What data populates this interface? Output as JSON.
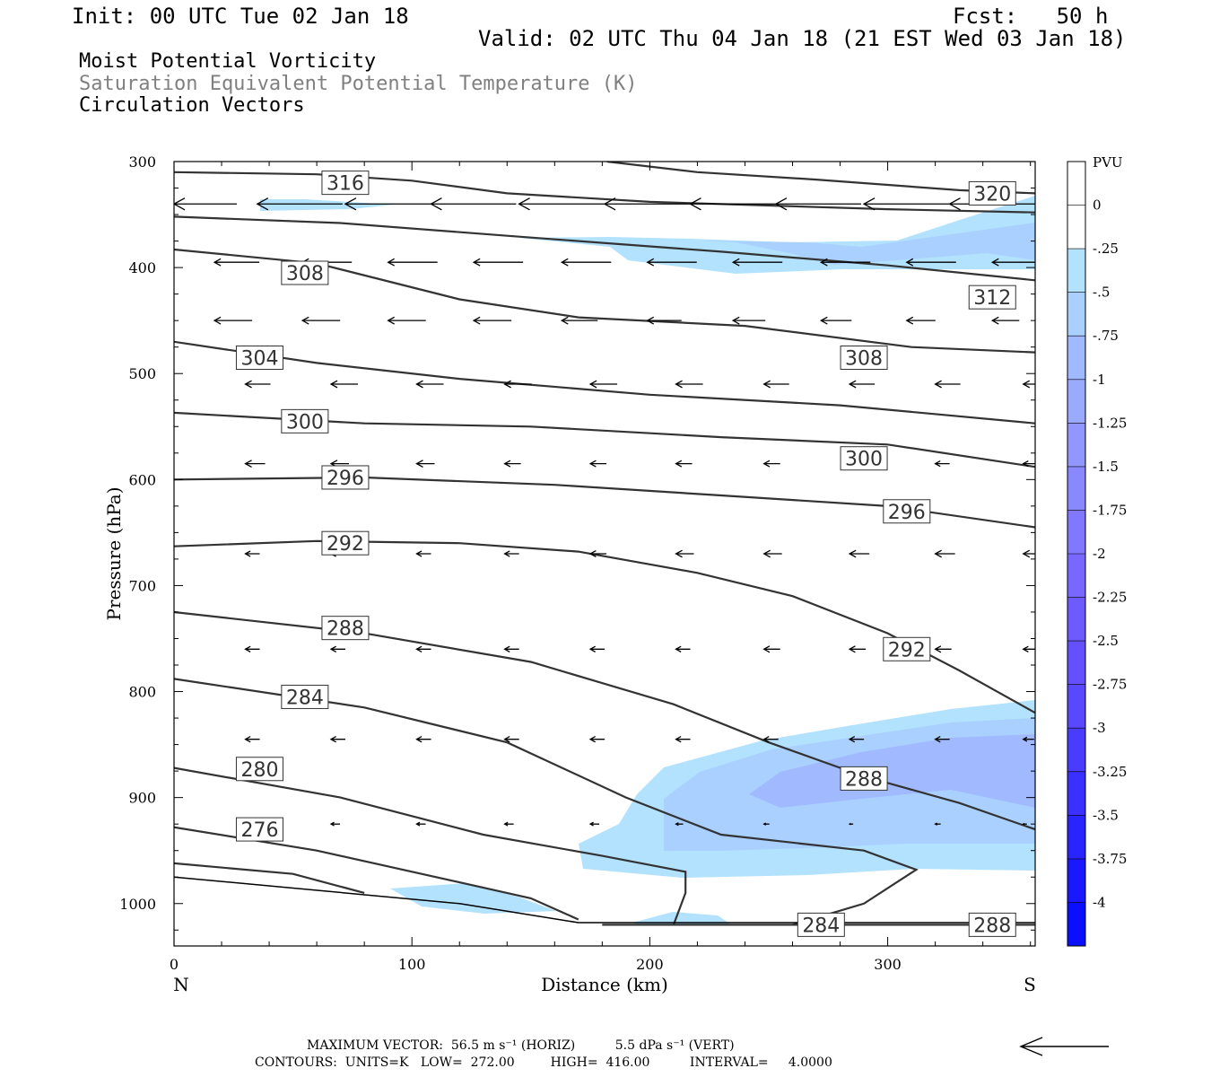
{
  "header": {
    "init": "Init: 00 UTC Tue 02 Jan 18",
    "fcst": "Fcst:   50 h",
    "valid": "Valid: 02 UTC Thu 04 Jan 18 (21 EST Wed 03 Jan 18)",
    "fields": [
      "Moist Potential Vorticity",
      "Saturation Equivalent Potential Temperature (K)",
      "Circulation Vectors"
    ]
  },
  "footer": {
    "line1": "MAXIMUM VECTOR:  56.5 m s⁻¹ (HORIZ)          5.5 dPa s⁻¹ (VERT)",
    "line2": "CONTOURS:  UNITS=K   LOW=  272.00         HIGH=  416.00          INTERVAL=     4.0000"
  },
  "colors": {
    "contour": "#333333",
    "pv_025": "#b3e2ff",
    "pv_05": "#aad0ff",
    "pv_075": "#a0b9ff"
  },
  "chart_data": {
    "type": "cross-section",
    "xlabel": "Distance (km)",
    "ylabel": "Pressure (hPa)",
    "xlim": [
      0,
      362
    ],
    "ylim": [
      1040,
      300
    ],
    "x_ticks": [
      0,
      100,
      200,
      300
    ],
    "y_ticks": [
      300,
      400,
      500,
      600,
      700,
      800,
      900,
      1000
    ],
    "end_labels": {
      "left": "N",
      "right": "S"
    },
    "colorbar": {
      "title": "PVU",
      "labels": [
        "0",
        "-.25",
        "-.5",
        "-.75",
        "-1",
        "-1.25",
        "-1.5",
        "-1.75",
        "-2",
        "-2.25",
        "-2.5",
        "-2.75",
        "-3",
        "-3.25",
        "-3.5",
        "-3.75",
        "-4"
      ],
      "colors": [
        "#ffffff",
        "#ffffff",
        "#b3e2ff",
        "#aad0ff",
        "#a0b9ff",
        "#99aaff",
        "#9296ff",
        "#8a88ff",
        "#8278ff",
        "#7868ff",
        "#6e5aff",
        "#6450ff",
        "#5a48ff",
        "#4a3cff",
        "#3a30ff",
        "#2a24ff",
        "#1a18ff",
        "#0a10ff"
      ]
    },
    "theta_e_contours": [
      {
        "value": 316,
        "points": [
          [
            0,
            310
          ],
          [
            60,
            312
          ],
          [
            100,
            318
          ],
          [
            140,
            330
          ],
          [
            200,
            338
          ],
          [
            300,
            345
          ],
          [
            362,
            348
          ]
        ],
        "label_at": [
          72,
          320
        ]
      },
      {
        "value": 320,
        "points": [
          [
            182,
            300
          ],
          [
            220,
            310
          ],
          [
            270,
            317
          ],
          [
            330,
            327
          ],
          [
            362,
            330
          ]
        ],
        "label_at": [
          344,
          330
        ]
      },
      {
        "value": 312,
        "points": [
          [
            0,
            352
          ],
          [
            70,
            358
          ],
          [
            140,
            370
          ],
          [
            230,
            385
          ],
          [
            300,
            398
          ],
          [
            362,
            412
          ]
        ],
        "label_at": [
          344,
          428
        ]
      },
      {
        "value": 308,
        "points": [
          [
            0,
            383
          ],
          [
            60,
            396
          ],
          [
            120,
            430
          ],
          [
            170,
            447
          ],
          [
            240,
            455
          ],
          [
            310,
            475
          ],
          [
            362,
            480
          ]
        ],
        "label_at": [
          55,
          405
        ],
        "label2_at": [
          290,
          485
        ]
      },
      {
        "value": 304,
        "points": [
          [
            0,
            470
          ],
          [
            60,
            490
          ],
          [
            120,
            505
          ],
          [
            200,
            520
          ],
          [
            280,
            530
          ],
          [
            362,
            547
          ]
        ],
        "label_at": [
          36,
          485
        ]
      },
      {
        "value": 300,
        "points": [
          [
            0,
            537
          ],
          [
            80,
            547
          ],
          [
            150,
            550
          ],
          [
            230,
            560
          ],
          [
            300,
            567
          ],
          [
            362,
            588
          ]
        ],
        "label_at": [
          55,
          545
        ],
        "label2_at": [
          290,
          580
        ]
      },
      {
        "value": 296,
        "points": [
          [
            0,
            600
          ],
          [
            80,
            598
          ],
          [
            160,
            605
          ],
          [
            230,
            615
          ],
          [
            300,
            625
          ],
          [
            362,
            645
          ]
        ],
        "label_at": [
          72,
          598
        ],
        "label2_at": [
          308,
          630
        ]
      },
      {
        "value": 292,
        "points": [
          [
            0,
            663
          ],
          [
            60,
            658
          ],
          [
            120,
            660
          ],
          [
            170,
            668
          ],
          [
            220,
            688
          ],
          [
            260,
            710
          ],
          [
            300,
            745
          ],
          [
            330,
            780
          ],
          [
            362,
            820
          ]
        ],
        "label_at": [
          72,
          660
        ],
        "label2_at": [
          308,
          760
        ]
      },
      {
        "value": 288,
        "points": [
          [
            0,
            725
          ],
          [
            80,
            745
          ],
          [
            150,
            772
          ],
          [
            210,
            812
          ],
          [
            250,
            848
          ],
          [
            290,
            880
          ],
          [
            330,
            905
          ],
          [
            362,
            930
          ]
        ],
        "label_at": [
          72,
          740
        ],
        "label2_at": [
          290,
          882
        ]
      },
      {
        "value": 284,
        "points": [
          [
            0,
            788
          ],
          [
            80,
            815
          ],
          [
            140,
            848
          ],
          [
            190,
            900
          ],
          [
            230,
            935
          ],
          [
            290,
            950
          ],
          [
            312,
            968
          ],
          [
            290,
            1000
          ],
          [
            260,
            1020
          ]
        ],
        "label_at": [
          55,
          805
        ],
        "label2_at": [
          272,
          1020
        ]
      },
      {
        "value": 280,
        "points": [
          [
            0,
            872
          ],
          [
            70,
            900
          ],
          [
            130,
            935
          ],
          [
            180,
            955
          ],
          [
            215,
            970
          ],
          [
            215,
            990
          ],
          [
            210,
            1020
          ]
        ],
        "label_at": [
          36,
          873
        ]
      },
      {
        "value": 276,
        "points": [
          [
            0,
            928
          ],
          [
            60,
            950
          ],
          [
            110,
            975
          ],
          [
            150,
            995
          ],
          [
            170,
            1015
          ]
        ],
        "label_at": [
          36,
          930
        ]
      },
      {
        "value": 272,
        "points": [
          [
            0,
            962
          ],
          [
            50,
            972
          ],
          [
            80,
            990
          ]
        ],
        "label_at": null
      },
      {
        "value": 288,
        "points": [
          [
            180,
            1020
          ],
          [
            300,
            1020
          ],
          [
            362,
            1020
          ]
        ],
        "label_at": [
          344,
          1020
        ]
      }
    ],
    "pv_regions_note": "shaded negative moist PV"
  }
}
